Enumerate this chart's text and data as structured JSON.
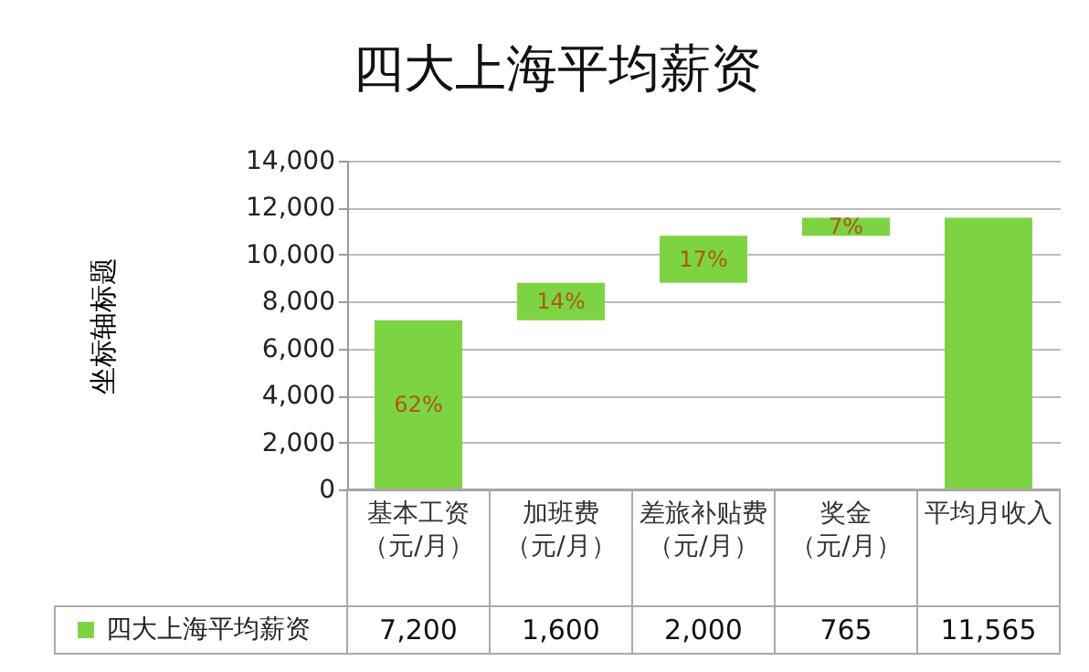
{
  "chart_data": {
    "type": "bar",
    "title": "四大上海平均薪资",
    "ylabel": "坐标轴标题",
    "categories": [
      "基本工资（元/月）",
      "加班费（元/月）",
      "差旅补贴费（元/月）",
      "奖金（元/月）",
      "平均月收入"
    ],
    "series": [
      {
        "name": "四大上海平均薪资",
        "color": "#7dd443",
        "values": [
          7200,
          1600,
          2000,
          765,
          11565
        ],
        "value_labels": [
          "7,200",
          "1,600",
          "2,000",
          "765",
          "11,565"
        ],
        "base": [
          0,
          7200,
          8800,
          10800,
          0
        ]
      }
    ],
    "ylim": [
      0,
      14000
    ],
    "yticks": [
      {
        "value": 0,
        "label": "0"
      },
      {
        "value": 2000,
        "label": "2,000"
      },
      {
        "value": 4000,
        "label": "4,000"
      },
      {
        "value": 6000,
        "label": "6,000"
      },
      {
        "value": 8000,
        "label": "8,000"
      },
      {
        "value": 10000,
        "label": "10,000"
      },
      {
        "value": 12000,
        "label": "12,000"
      },
      {
        "value": 14000,
        "label": "14,000"
      }
    ],
    "grid": "y",
    "legend": "bottom left",
    "annotations": [
      "62%",
      "14%",
      "17%",
      "7%"
    ]
  }
}
